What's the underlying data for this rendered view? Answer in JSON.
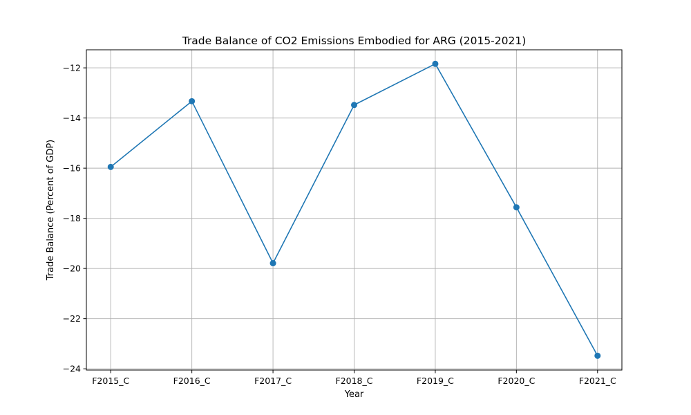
{
  "chart_data": {
    "type": "line",
    "title": "Trade Balance of CO2 Emissions Embodied for ARG (2015-2021)",
    "xlabel": "Year",
    "ylabel": "Trade Balance (Percent of GDP)",
    "categories": [
      "F2015_C",
      "F2016_C",
      "F2017_C",
      "F2018_C",
      "F2019_C",
      "F2020_C",
      "F2021_C"
    ],
    "series": [
      {
        "values": [
          -15.95,
          -13.33,
          -19.79,
          -13.48,
          -11.84,
          -17.56,
          -23.48
        ],
        "color": "#1f77b4",
        "marker": "circle"
      }
    ],
    "ylim": [
      -24.05,
      -11.28
    ],
    "yticks": [
      -24,
      -22,
      -20,
      -18,
      -16,
      -14,
      -12
    ],
    "grid": true,
    "legend": "none"
  }
}
